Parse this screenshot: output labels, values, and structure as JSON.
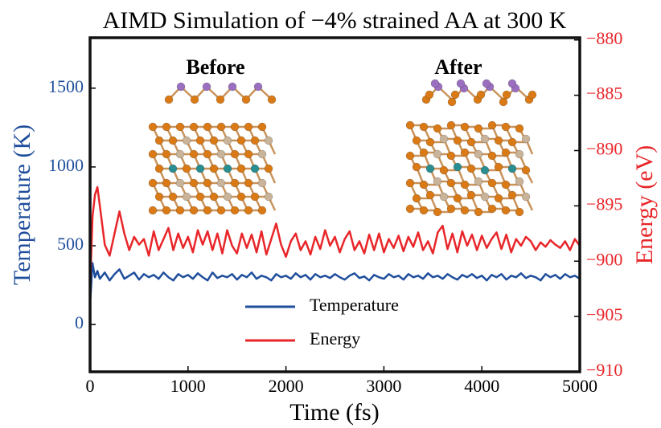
{
  "chart_data": {
    "type": "line",
    "title": "AIMD Simulation of −4% strained AA at 300 K",
    "xlabel": "Time (fs)",
    "ylabel": "Temperature (K)",
    "y2label": "Energy (eV)",
    "annotations": [
      "Before",
      "After"
    ],
    "x": [
      0,
      25,
      50,
      75,
      100,
      150,
      200,
      250,
      300,
      350,
      400,
      450,
      500,
      550,
      600,
      650,
      700,
      750,
      800,
      850,
      900,
      950,
      1000,
      1050,
      1100,
      1150,
      1200,
      1250,
      1300,
      1350,
      1400,
      1450,
      1500,
      1550,
      1600,
      1650,
      1700,
      1750,
      1800,
      1850,
      1900,
      1950,
      2000,
      2050,
      2100,
      2150,
      2200,
      2250,
      2300,
      2350,
      2400,
      2450,
      2500,
      2550,
      2600,
      2650,
      2700,
      2750,
      2800,
      2850,
      2900,
      2950,
      3000,
      3050,
      3100,
      3150,
      3200,
      3250,
      3300,
      3350,
      3400,
      3450,
      3500,
      3550,
      3600,
      3650,
      3700,
      3750,
      3800,
      3850,
      3900,
      3950,
      4000,
      4050,
      4100,
      4150,
      4200,
      4250,
      4300,
      4350,
      4400,
      4450,
      4500,
      4550,
      4600,
      4650,
      4700,
      4750,
      4800,
      4850,
      4900,
      4950,
      5000
    ],
    "series": [
      {
        "name": "Temperature",
        "color": "#1f4e9c",
        "values": [
          130,
          390,
          300,
          340,
          290,
          330,
          280,
          320,
          350,
          290,
          310,
          330,
          285,
          320,
          300,
          315,
          290,
          330,
          300,
          280,
          320,
          300,
          315,
          290,
          325,
          300,
          280,
          330,
          295,
          310,
          300,
          320,
          285,
          315,
          300,
          330,
          290,
          310,
          300,
          280,
          320,
          300,
          310,
          290,
          325,
          300,
          315,
          285,
          320,
          300,
          310,
          295,
          320,
          300,
          285,
          310,
          325,
          295,
          305,
          280,
          315,
          300,
          290,
          320,
          300,
          310,
          285,
          320,
          300,
          310,
          290,
          325,
          300,
          310,
          290,
          320,
          300,
          285,
          315,
          300,
          320,
          295,
          310,
          280,
          315,
          300,
          320,
          285,
          310,
          300,
          325,
          295,
          310,
          300,
          280,
          320,
          300,
          315,
          290,
          320,
          300,
          310,
          290
        ]
      },
      {
        "name": "Energy",
        "color": "#e8262a",
        "axis": "y2",
        "values": [
          -902.5,
          -896,
          -894,
          -893.3,
          -895,
          -898.5,
          -899.5,
          -897.5,
          -895.5,
          -897.5,
          -899,
          -897.8,
          -898.5,
          -898,
          -899.5,
          -897.3,
          -899,
          -898,
          -897,
          -899,
          -897.5,
          -898.8,
          -897.8,
          -899.2,
          -897.2,
          -898.5,
          -897.3,
          -899,
          -897.5,
          -899.3,
          -897.2,
          -898.6,
          -899.3,
          -897.5,
          -898.8,
          -897.6,
          -899.2,
          -897.3,
          -899.4,
          -898,
          -896.6,
          -898.5,
          -899.6,
          -898.2,
          -897.5,
          -899,
          -898.2,
          -899.4,
          -897.8,
          -898.9,
          -897.2,
          -898.6,
          -897.8,
          -899.2,
          -898,
          -897.3,
          -899,
          -898.2,
          -899.3,
          -897.6,
          -899,
          -897.5,
          -899.2,
          -898,
          -898.8,
          -897.7,
          -899.1,
          -897.8,
          -898.7,
          -897.4,
          -899,
          -898.2,
          -899.3,
          -897.4,
          -896.8,
          -898.9,
          -897.5,
          -899.2,
          -897.3,
          -898.6,
          -897.6,
          -899,
          -897.7,
          -898.8,
          -898,
          -897.4,
          -898.9,
          -897.6,
          -899.2,
          -898,
          -898.6,
          -897.8,
          -898.2,
          -899,
          -898.3,
          -898.7,
          -898.1,
          -898.5,
          -898.8,
          -898.2,
          -899,
          -898,
          -898.6
        ]
      }
    ],
    "xlim": [
      0,
      5000
    ],
    "xticks": [
      0,
      1000,
      2000,
      3000,
      4000,
      5000
    ],
    "ylim": [
      -300,
      1820
    ],
    "yticks": [
      0,
      500,
      1000,
      1500
    ],
    "y2lim": [
      -910,
      -879.8
    ],
    "y2ticks": [
      {
        "value": -880,
        "label": "−880"
      },
      {
        "value": -885,
        "label": "−885"
      },
      {
        "value": -890,
        "label": "−890"
      },
      {
        "value": -895,
        "label": "−895"
      },
      {
        "value": -900,
        "label": "−900"
      },
      {
        "value": -905,
        "label": "−905"
      },
      {
        "value": -910,
        "label": "−910"
      }
    ],
    "legend": "lower center",
    "grid": false
  }
}
